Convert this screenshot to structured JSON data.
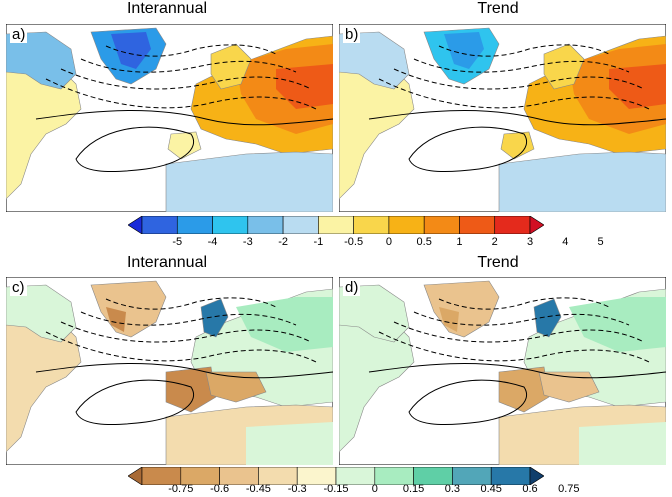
{
  "titles": {
    "top_left": "Interannual",
    "top_right": "Trend",
    "bottom_left": "Interannual",
    "bottom_right": "Trend"
  },
  "panels": {
    "a": "a)",
    "b": "b)",
    "c": "c)",
    "d": "d)"
  },
  "colorbar_top": {
    "labels": [
      "-5",
      "-4",
      "-3",
      "-2",
      "-1",
      "-0.5",
      "0",
      "0.5",
      "1",
      "2",
      "3",
      "4",
      "5"
    ],
    "colors": [
      "#1a2bd9",
      "#2f64e0",
      "#2b9be8",
      "#2fc4ee",
      "#79bfe9",
      "#b9dcf1",
      "#fbf3a4",
      "#f9d64b",
      "#f7b216",
      "#f38a16",
      "#ee5a17",
      "#e42a1c",
      "#d20f24"
    ]
  },
  "colorbar_bottom": {
    "labels": [
      "-0.75",
      "-0.6",
      "-0.45",
      "-0.3",
      "-0.15",
      "0",
      "0.15",
      "0.3",
      "0.45",
      "0.6",
      "0.75"
    ],
    "colors": [
      "#a86a36",
      "#c98a4c",
      "#dba866",
      "#eac38e",
      "#f3dcae",
      "#fbf5cd",
      "#d9f6d9",
      "#a8ecc0",
      "#5fcfa6",
      "#52a6b8",
      "#2778a8",
      "#103e6c"
    ]
  }
}
